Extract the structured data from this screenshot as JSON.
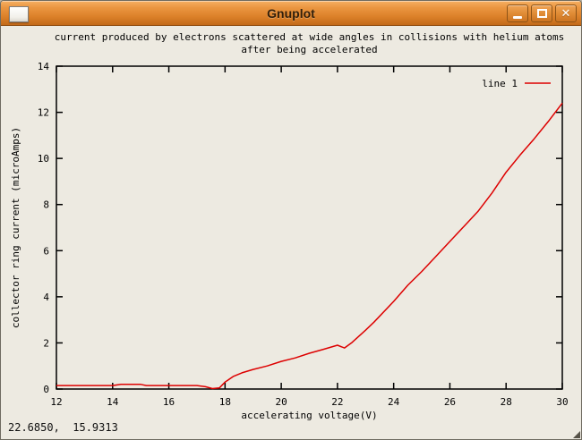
{
  "window": {
    "title": "Gnuplot",
    "icons": {
      "close_glyph": "✕"
    }
  },
  "status": {
    "coordinates": "22.6850,  15.9313"
  },
  "chart_data": {
    "type": "line",
    "title": "current produced by electrons scattered at wide angles in collisions with helium atoms",
    "title_line2": "after being accelerated",
    "xlabel": "accelerating voltage(V)",
    "ylabel": "collector ring current (microAmps)",
    "xlim": [
      12,
      30
    ],
    "ylim": [
      0,
      14
    ],
    "xticks": [
      12,
      14,
      16,
      18,
      20,
      22,
      24,
      26,
      28,
      30
    ],
    "yticks": [
      0,
      2,
      4,
      6,
      8,
      10,
      12,
      14
    ],
    "grid": false,
    "legend_position": "top-right-inside",
    "legend": [
      {
        "name": "line 1",
        "color": "#dd0000"
      }
    ],
    "series": [
      {
        "name": "line 1",
        "color": "#dd0000",
        "points": [
          [
            12.0,
            0.15
          ],
          [
            12.5,
            0.15
          ],
          [
            13.0,
            0.15
          ],
          [
            13.5,
            0.15
          ],
          [
            14.0,
            0.15
          ],
          [
            14.3,
            0.2
          ],
          [
            15.0,
            0.2
          ],
          [
            15.2,
            0.15
          ],
          [
            16.0,
            0.15
          ],
          [
            16.5,
            0.15
          ],
          [
            17.0,
            0.15
          ],
          [
            17.3,
            0.1
          ],
          [
            17.55,
            0.02
          ],
          [
            17.8,
            0.05
          ],
          [
            18.0,
            0.3
          ],
          [
            18.3,
            0.55
          ],
          [
            18.6,
            0.7
          ],
          [
            19.0,
            0.85
          ],
          [
            19.5,
            1.0
          ],
          [
            20.0,
            1.2
          ],
          [
            20.5,
            1.35
          ],
          [
            21.0,
            1.55
          ],
          [
            21.5,
            1.72
          ],
          [
            22.0,
            1.9
          ],
          [
            22.25,
            1.78
          ],
          [
            22.5,
            2.0
          ],
          [
            23.0,
            2.55
          ],
          [
            23.3,
            2.9
          ],
          [
            24.0,
            3.8
          ],
          [
            24.5,
            4.5
          ],
          [
            25.0,
            5.1
          ],
          [
            25.5,
            5.75
          ],
          [
            26.0,
            6.4
          ],
          [
            26.5,
            7.05
          ],
          [
            27.0,
            7.7
          ],
          [
            27.5,
            8.5
          ],
          [
            28.0,
            9.4
          ],
          [
            28.5,
            10.15
          ],
          [
            29.0,
            10.85
          ],
          [
            29.5,
            11.6
          ],
          [
            30.0,
            12.4
          ]
        ]
      }
    ]
  }
}
